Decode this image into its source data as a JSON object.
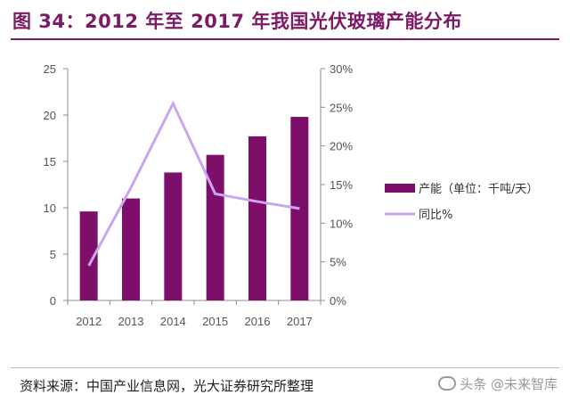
{
  "page": {
    "title": "图 34：2012 年至 2017 年我国光伏玻璃产能分布",
    "source": "资料来源：中国产业信息网，光大证券研究所整理",
    "watermark": "头条 @未来智库"
  },
  "colors": {
    "title": "#7d1a66",
    "bar": "#7d0f6b",
    "line": "#c9a6f0",
    "axis": "#8c8c8c",
    "text": "#555555"
  },
  "chart_data": {
    "type": "bar",
    "categories": [
      "2012",
      "2013",
      "2014",
      "2015",
      "2016",
      "2017"
    ],
    "series": [
      {
        "name": "产能（单位：千吨/天）",
        "type": "bar",
        "axis": "left",
        "values": [
          9.6,
          11.0,
          13.8,
          15.7,
          17.7,
          19.8
        ]
      },
      {
        "name": "同比%",
        "type": "line",
        "axis": "right",
        "values": [
          4.5,
          14.6,
          25.5,
          13.8,
          12.8,
          11.9
        ]
      }
    ],
    "left_axis": {
      "ylim": [
        0,
        25
      ],
      "ticks": [
        "0",
        "5",
        "10",
        "15",
        "20",
        "25"
      ]
    },
    "right_axis": {
      "ylim": [
        0,
        30
      ],
      "ticks": [
        "0%",
        "5%",
        "10%",
        "15%",
        "20%",
        "25%",
        "30%"
      ]
    },
    "legend_position": "right",
    "grid": false
  }
}
